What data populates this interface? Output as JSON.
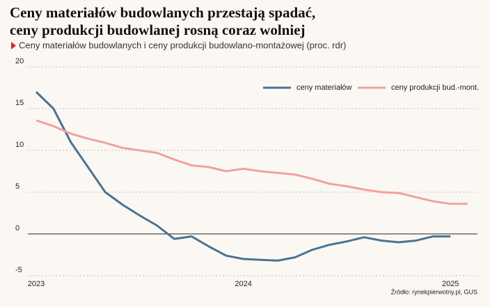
{
  "chart_data": {
    "type": "line",
    "title": "Ceny materiałów budowlanych przestają spadać,",
    "title_line2": "ceny produkcji budowlanej rosną coraz wolniej",
    "subtitle": "Ceny materiałów budowlanych i ceny produkcji budowlano-montażowej (proc. rdr)",
    "source": "Źródło: rynekpierwotny.pl, GUS",
    "categories": [
      "2023",
      null,
      null,
      null,
      null,
      null,
      null,
      null,
      null,
      null,
      null,
      null,
      "2024",
      null,
      null,
      null,
      null,
      null,
      null,
      null,
      null,
      null,
      null,
      null,
      "2025",
      null
    ],
    "series": [
      {
        "name": "ceny materiałów",
        "color": "#4a7393",
        "values": [
          17.0,
          15.0,
          11.0,
          8.0,
          5.0,
          3.5,
          2.2,
          1.0,
          -0.6,
          -0.3,
          -1.5,
          -2.6,
          -3.0,
          -3.1,
          -3.2,
          -2.8,
          -1.9,
          -1.3,
          -0.9,
          -0.4,
          -0.8,
          -1.0,
          -0.8,
          -0.3,
          -0.3,
          null
        ]
      },
      {
        "name": "ceny produkcji bud.-mont.",
        "color": "#f2a19d",
        "values": [
          13.6,
          12.9,
          12.0,
          11.4,
          10.9,
          10.3,
          10.0,
          9.7,
          8.9,
          8.2,
          8.0,
          7.5,
          7.8,
          7.5,
          7.3,
          7.1,
          6.6,
          6.0,
          5.7,
          5.3,
          5.0,
          4.9,
          4.4,
          3.9,
          3.6,
          3.6
        ]
      }
    ],
    "ylim": [
      -5,
      20
    ],
    "yticks": [
      -5,
      0,
      5,
      10,
      15,
      20
    ],
    "grid": true,
    "legend": "top-right"
  }
}
